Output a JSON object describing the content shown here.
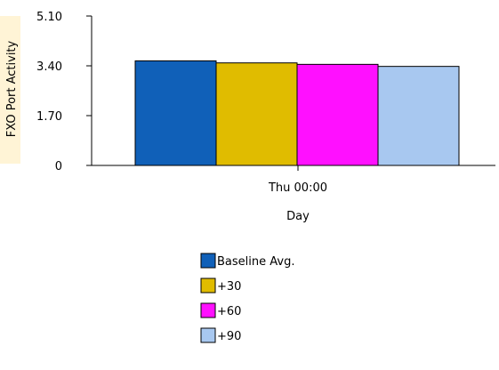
{
  "chart_data": {
    "type": "bar",
    "title": "",
    "xlabel": "Day",
    "ylabel": "FXO Port Activity",
    "ylim": [
      0,
      5.1
    ],
    "yticks": [
      "0",
      "1.70",
      "3.40",
      "5.10"
    ],
    "categories": [
      "Thu 00:00"
    ],
    "series": [
      {
        "name": "Baseline Avg.",
        "values": [
          3.57
        ],
        "color": "#1060B8"
      },
      {
        "name": "+30",
        "values": [
          3.5
        ],
        "color": "#E0BC00"
      },
      {
        "name": "+60",
        "values": [
          3.45
        ],
        "color": "#FF10FF"
      },
      {
        "name": "+90",
        "values": [
          3.38
        ],
        "color": "#A8C8F0"
      }
    ],
    "legend_position": "bottom",
    "grid": false,
    "axis_label_background": "#FFF4D6"
  }
}
